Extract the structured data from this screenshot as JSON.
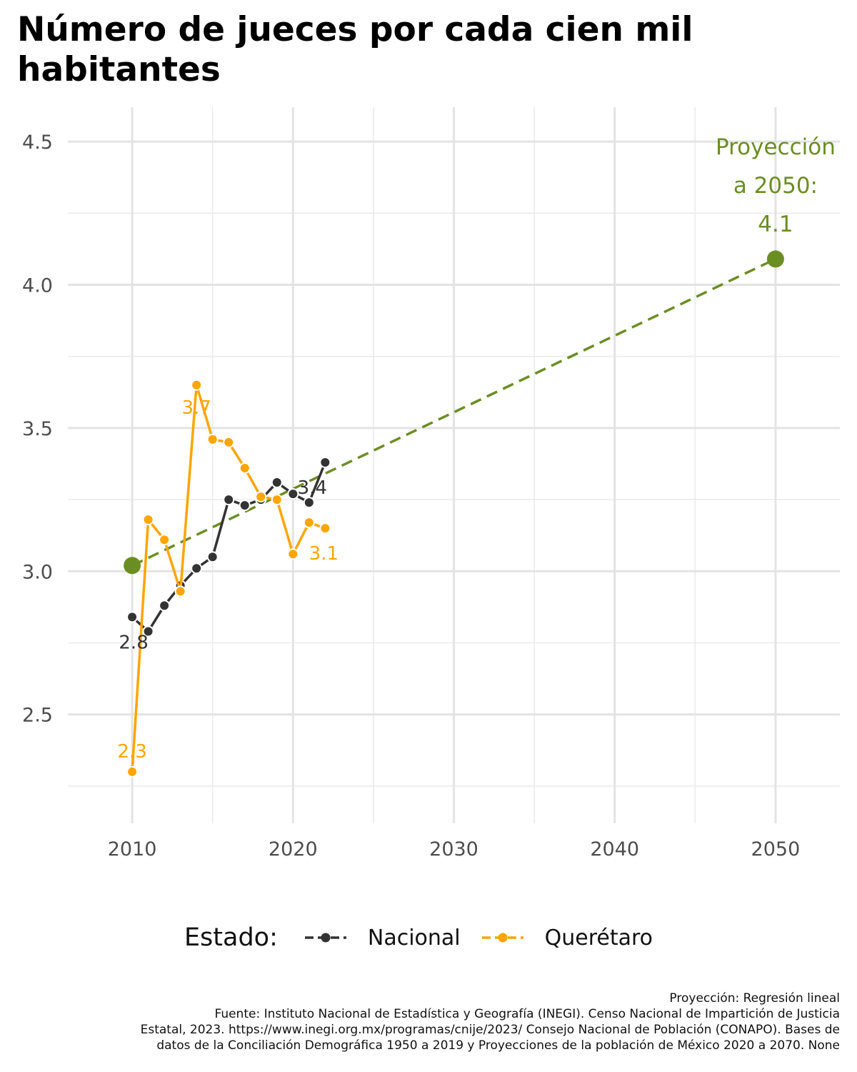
{
  "title": "Número de jueces por cada cien mil habitantes",
  "legend": {
    "title": "Estado:",
    "items": [
      {
        "label": "Nacional",
        "color": "#333333"
      },
      {
        "label": "Querétaro",
        "color": "#FFA500"
      }
    ]
  },
  "annotation": {
    "lines": [
      "Proyección",
      "a 2050:",
      "4.1"
    ],
    "color": "#6B8E23"
  },
  "caption": {
    "lines": [
      "Proyección: Regresión lineal",
      "Fuente: Instituto Nacional de Estadística y Geografía (INEGI). Censo Nacional de Impartición de Justicia",
      "Estatal, 2023. https://www.inegi.org.mx/programas/cnije/2023/ Consejo Nacional de Población (CONAPO). Bases de",
      "datos de la Conciliación Demográfica 1950 a 2019 y Proyecciones de la población de México 2020 a 2070. None"
    ]
  },
  "chart_data": {
    "type": "line",
    "xlim": [
      2006,
      2054
    ],
    "ylim": [
      2.12,
      4.62
    ],
    "x_ticks": [
      2010,
      2020,
      2030,
      2040,
      2050
    ],
    "x_tick_labels": [
      "2010",
      "2020",
      "2030",
      "2040",
      "2050"
    ],
    "y_ticks": [
      2.5,
      3.0,
      3.5,
      4.0,
      4.5
    ],
    "y_tick_labels": [
      "2.5",
      "3.0",
      "3.5",
      "4.0",
      "4.5"
    ],
    "grid": true,
    "legend_position": "bottom",
    "series": [
      {
        "name": "Nacional",
        "color": "#333333",
        "x": [
          2010,
          2011,
          2012,
          2013,
          2014,
          2015,
          2016,
          2017,
          2018,
          2019,
          2020,
          2021,
          2022
        ],
        "y": [
          2.84,
          2.79,
          2.88,
          2.95,
          3.01,
          3.05,
          3.25,
          3.23,
          3.25,
          3.31,
          3.27,
          3.24,
          3.38
        ],
        "point_labels": [
          {
            "x": 2010,
            "y": 2.84,
            "text": "2.8"
          },
          {
            "x": 2022,
            "y": 3.38,
            "text": "3.4"
          }
        ]
      },
      {
        "name": "Querétaro",
        "color": "#FFA500",
        "x": [
          2010,
          2011,
          2012,
          2013,
          2014,
          2015,
          2016,
          2017,
          2018,
          2019,
          2020,
          2021,
          2022
        ],
        "y": [
          2.3,
          3.18,
          3.11,
          2.93,
          3.65,
          3.46,
          3.45,
          3.36,
          3.26,
          3.25,
          3.06,
          3.17,
          3.15
        ],
        "point_labels": [
          {
            "x": 2010,
            "y": 2.3,
            "text": "2.3"
          },
          {
            "x": 2014,
            "y": 3.65,
            "text": "3.7"
          },
          {
            "x": 2022,
            "y": 3.15,
            "text": "3.1"
          }
        ]
      }
    ],
    "projection": {
      "color": "#6B8E23",
      "style": "dashed",
      "x": [
        2010,
        2050
      ],
      "y": [
        3.02,
        4.09
      ]
    }
  }
}
